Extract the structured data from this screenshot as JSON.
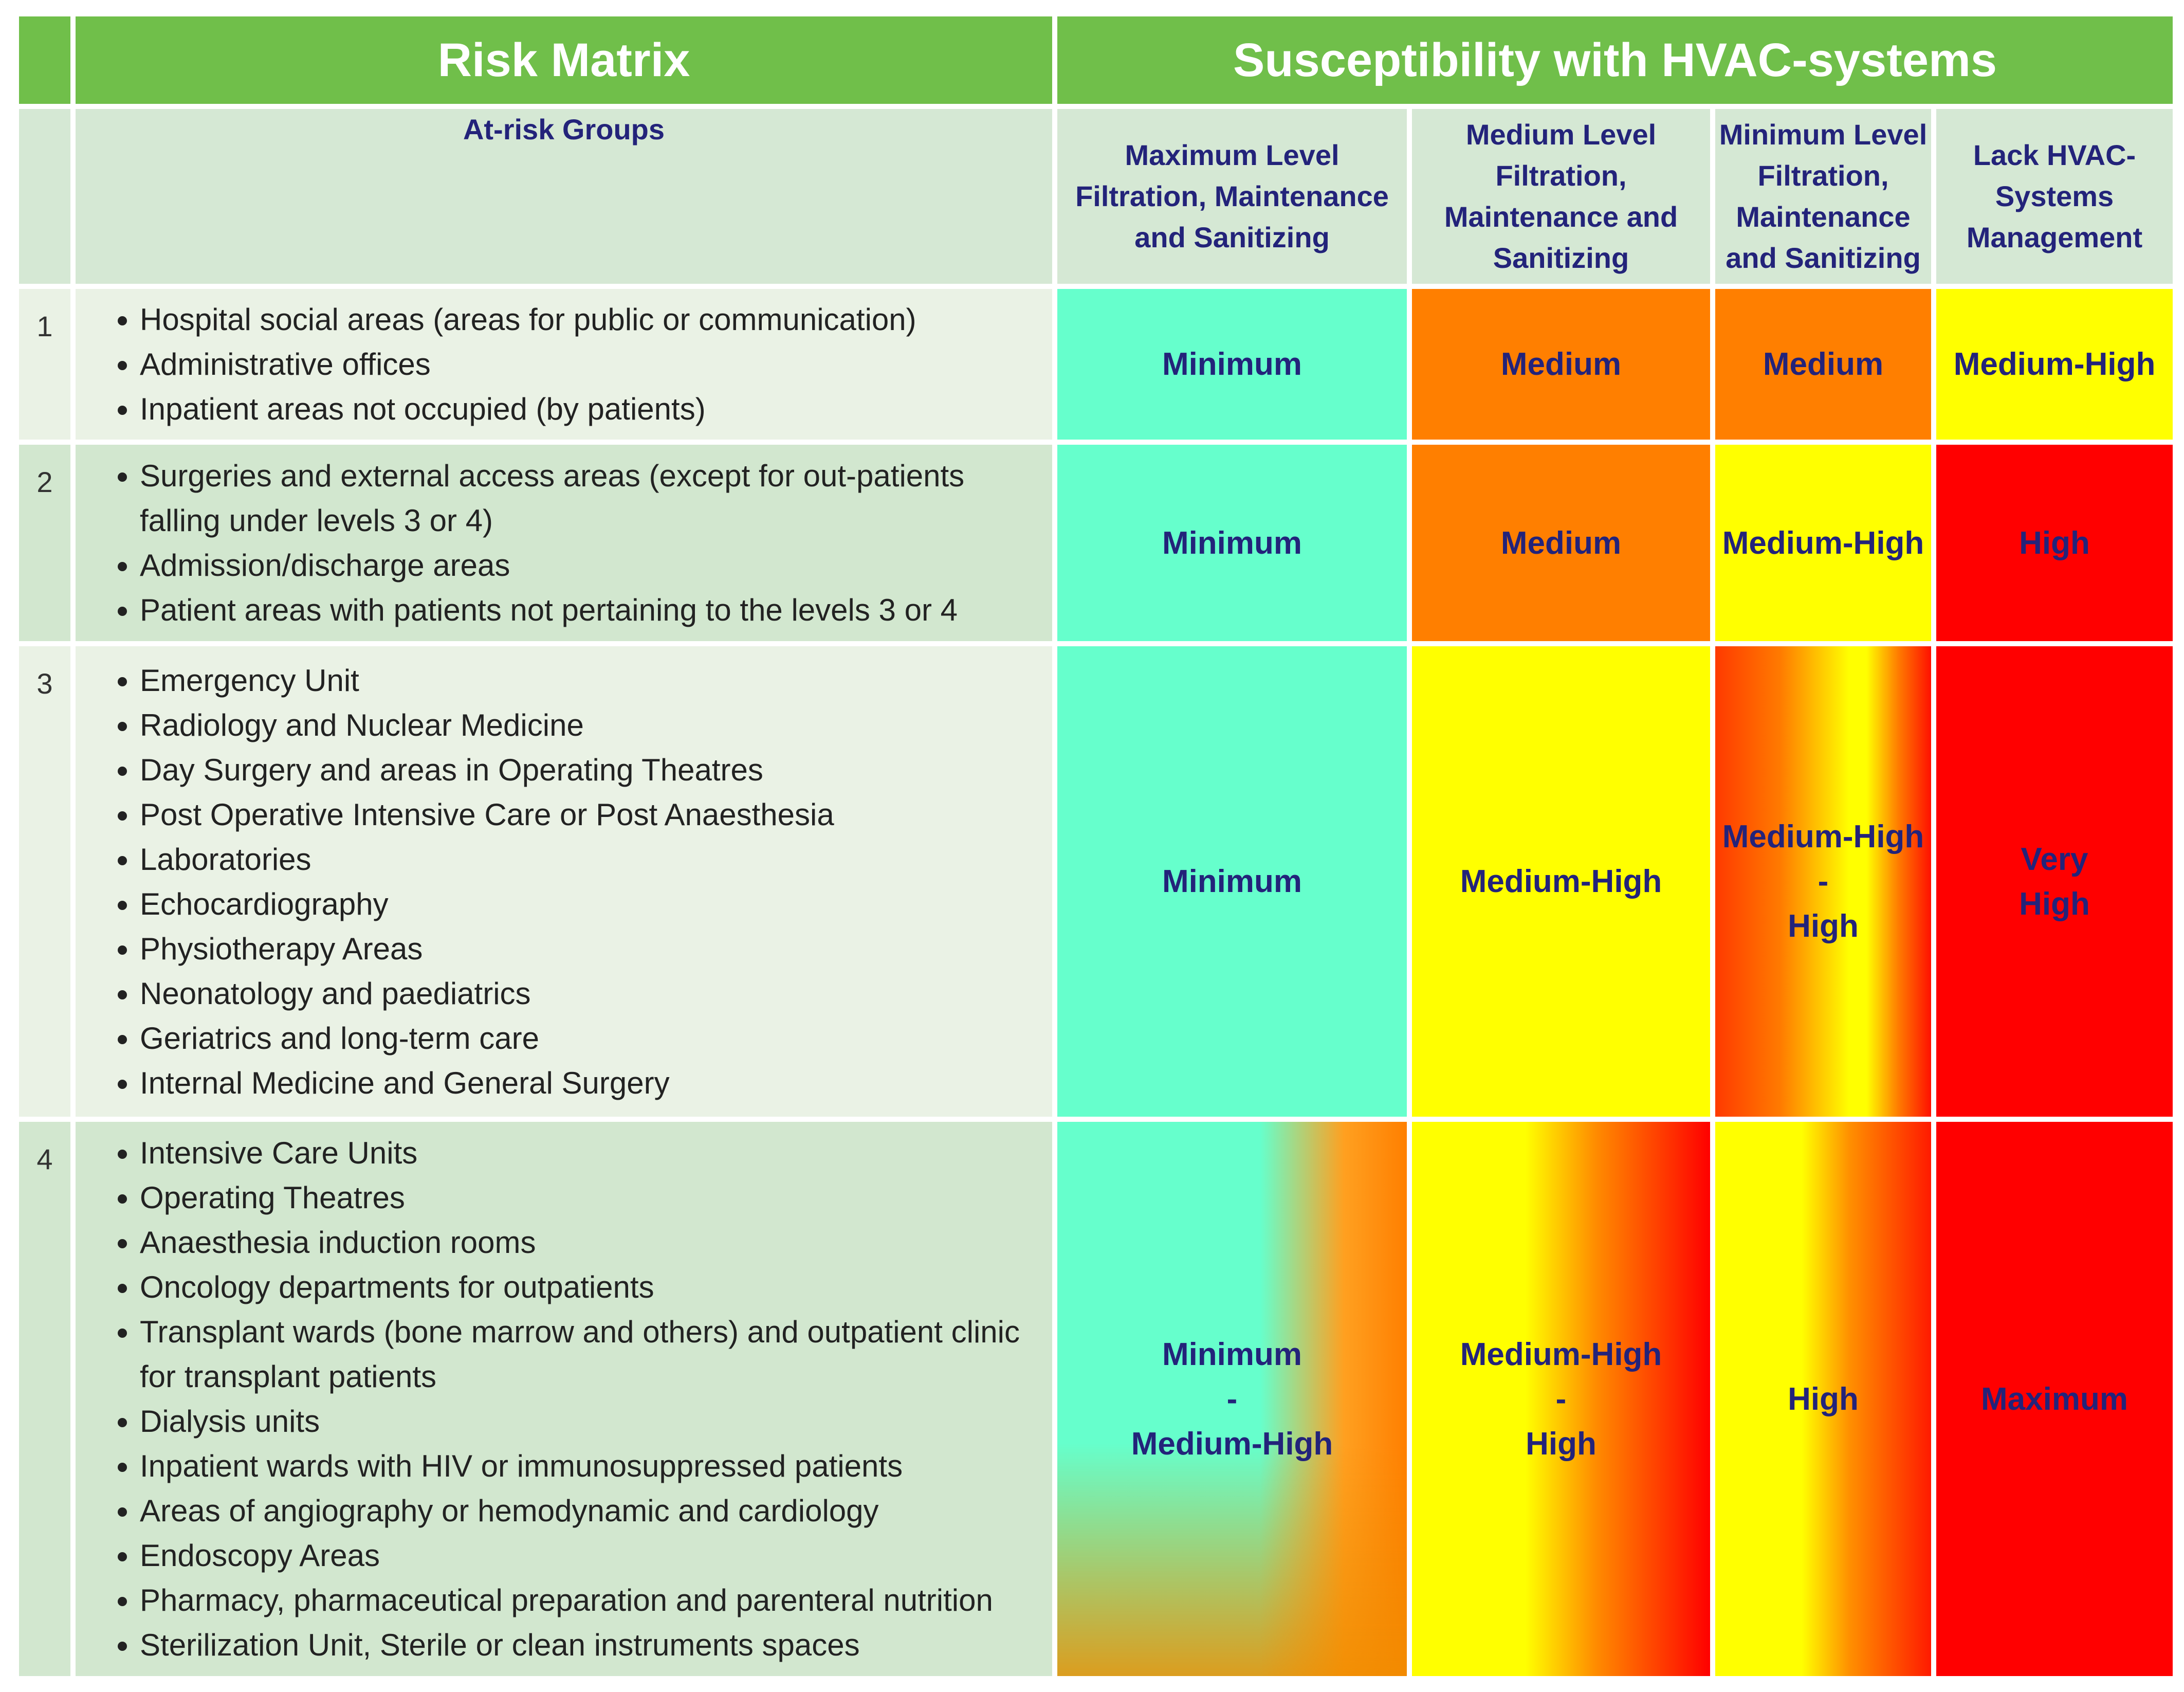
{
  "title_left": "Risk Matrix",
  "title_right": "Susceptibility with HVAC-systems",
  "headers": {
    "groups": "At-risk Groups",
    "col1": "Maximum Level Filtration, Maintenance and Sanitizing",
    "col2": "Medium Level Filtration, Maintenance and Sanitizing",
    "col3": "Minimum Level Filtration, Maintenance and Sanitizing",
    "col4": "Lack HVAC-Systems Management"
  },
  "rows": [
    {
      "num": "1",
      "groups": [
        "Hospital social areas (areas for public or communication)",
        "Administrative offices",
        "Inpatient areas not occupied (by patients)"
      ],
      "cells": [
        "Minimum",
        "Medium",
        "Medium",
        "Medium-High"
      ]
    },
    {
      "num": "2",
      "groups": [
        "Surgeries and external access areas (except for out-patients falling under levels 3 or 4)",
        "Admission/discharge areas",
        "Patient areas with patients not pertaining to the levels 3 or 4"
      ],
      "cells": [
        "Minimum",
        "Medium",
        "Medium-High",
        "High"
      ]
    },
    {
      "num": "3",
      "groups": [
        "Emergency Unit",
        "Radiology and Nuclear Medicine",
        "Day Surgery and areas in Operating Theatres",
        "Post Operative Intensive Care or Post Anaesthesia",
        "Laboratories",
        "Echocardiography",
        "Physiotherapy Areas",
        "Neonatology and paediatrics",
        "Geriatrics and long-term care",
        "Internal Medicine and General Surgery"
      ],
      "cells": [
        "Minimum",
        "Medium-High",
        [
          "Medium-High",
          "-",
          "High"
        ],
        [
          "Very",
          "High"
        ]
      ]
    },
    {
      "num": "4",
      "groups": [
        "Intensive Care Units",
        "Operating Theatres",
        "Anaesthesia induction rooms",
        "Oncology departments for outpatients",
        "Transplant wards (bone marrow and others) and outpatient clinic for transplant patients",
        "Dialysis units",
        "Inpatient wards with HIV or immunosuppressed patients",
        "Areas of angiography or hemodynamic and  cardiology",
        "Endoscopy Areas",
        "Pharmacy, pharmaceutical preparation and parenteral nutrition",
        "Sterilization Unit, Sterile or clean instruments spaces"
      ],
      "cells": [
        [
          "Minimum",
          "-",
          "Medium-High"
        ],
        [
          "Medium-High",
          "-",
          "High"
        ],
        "High",
        "Maximum"
      ]
    }
  ],
  "colors": {
    "header_green": "#70bf4a",
    "minimum": "#66ffcc",
    "medium": "#ff7f00",
    "medium_high": "#ffff00",
    "high": "#ff0000"
  }
}
